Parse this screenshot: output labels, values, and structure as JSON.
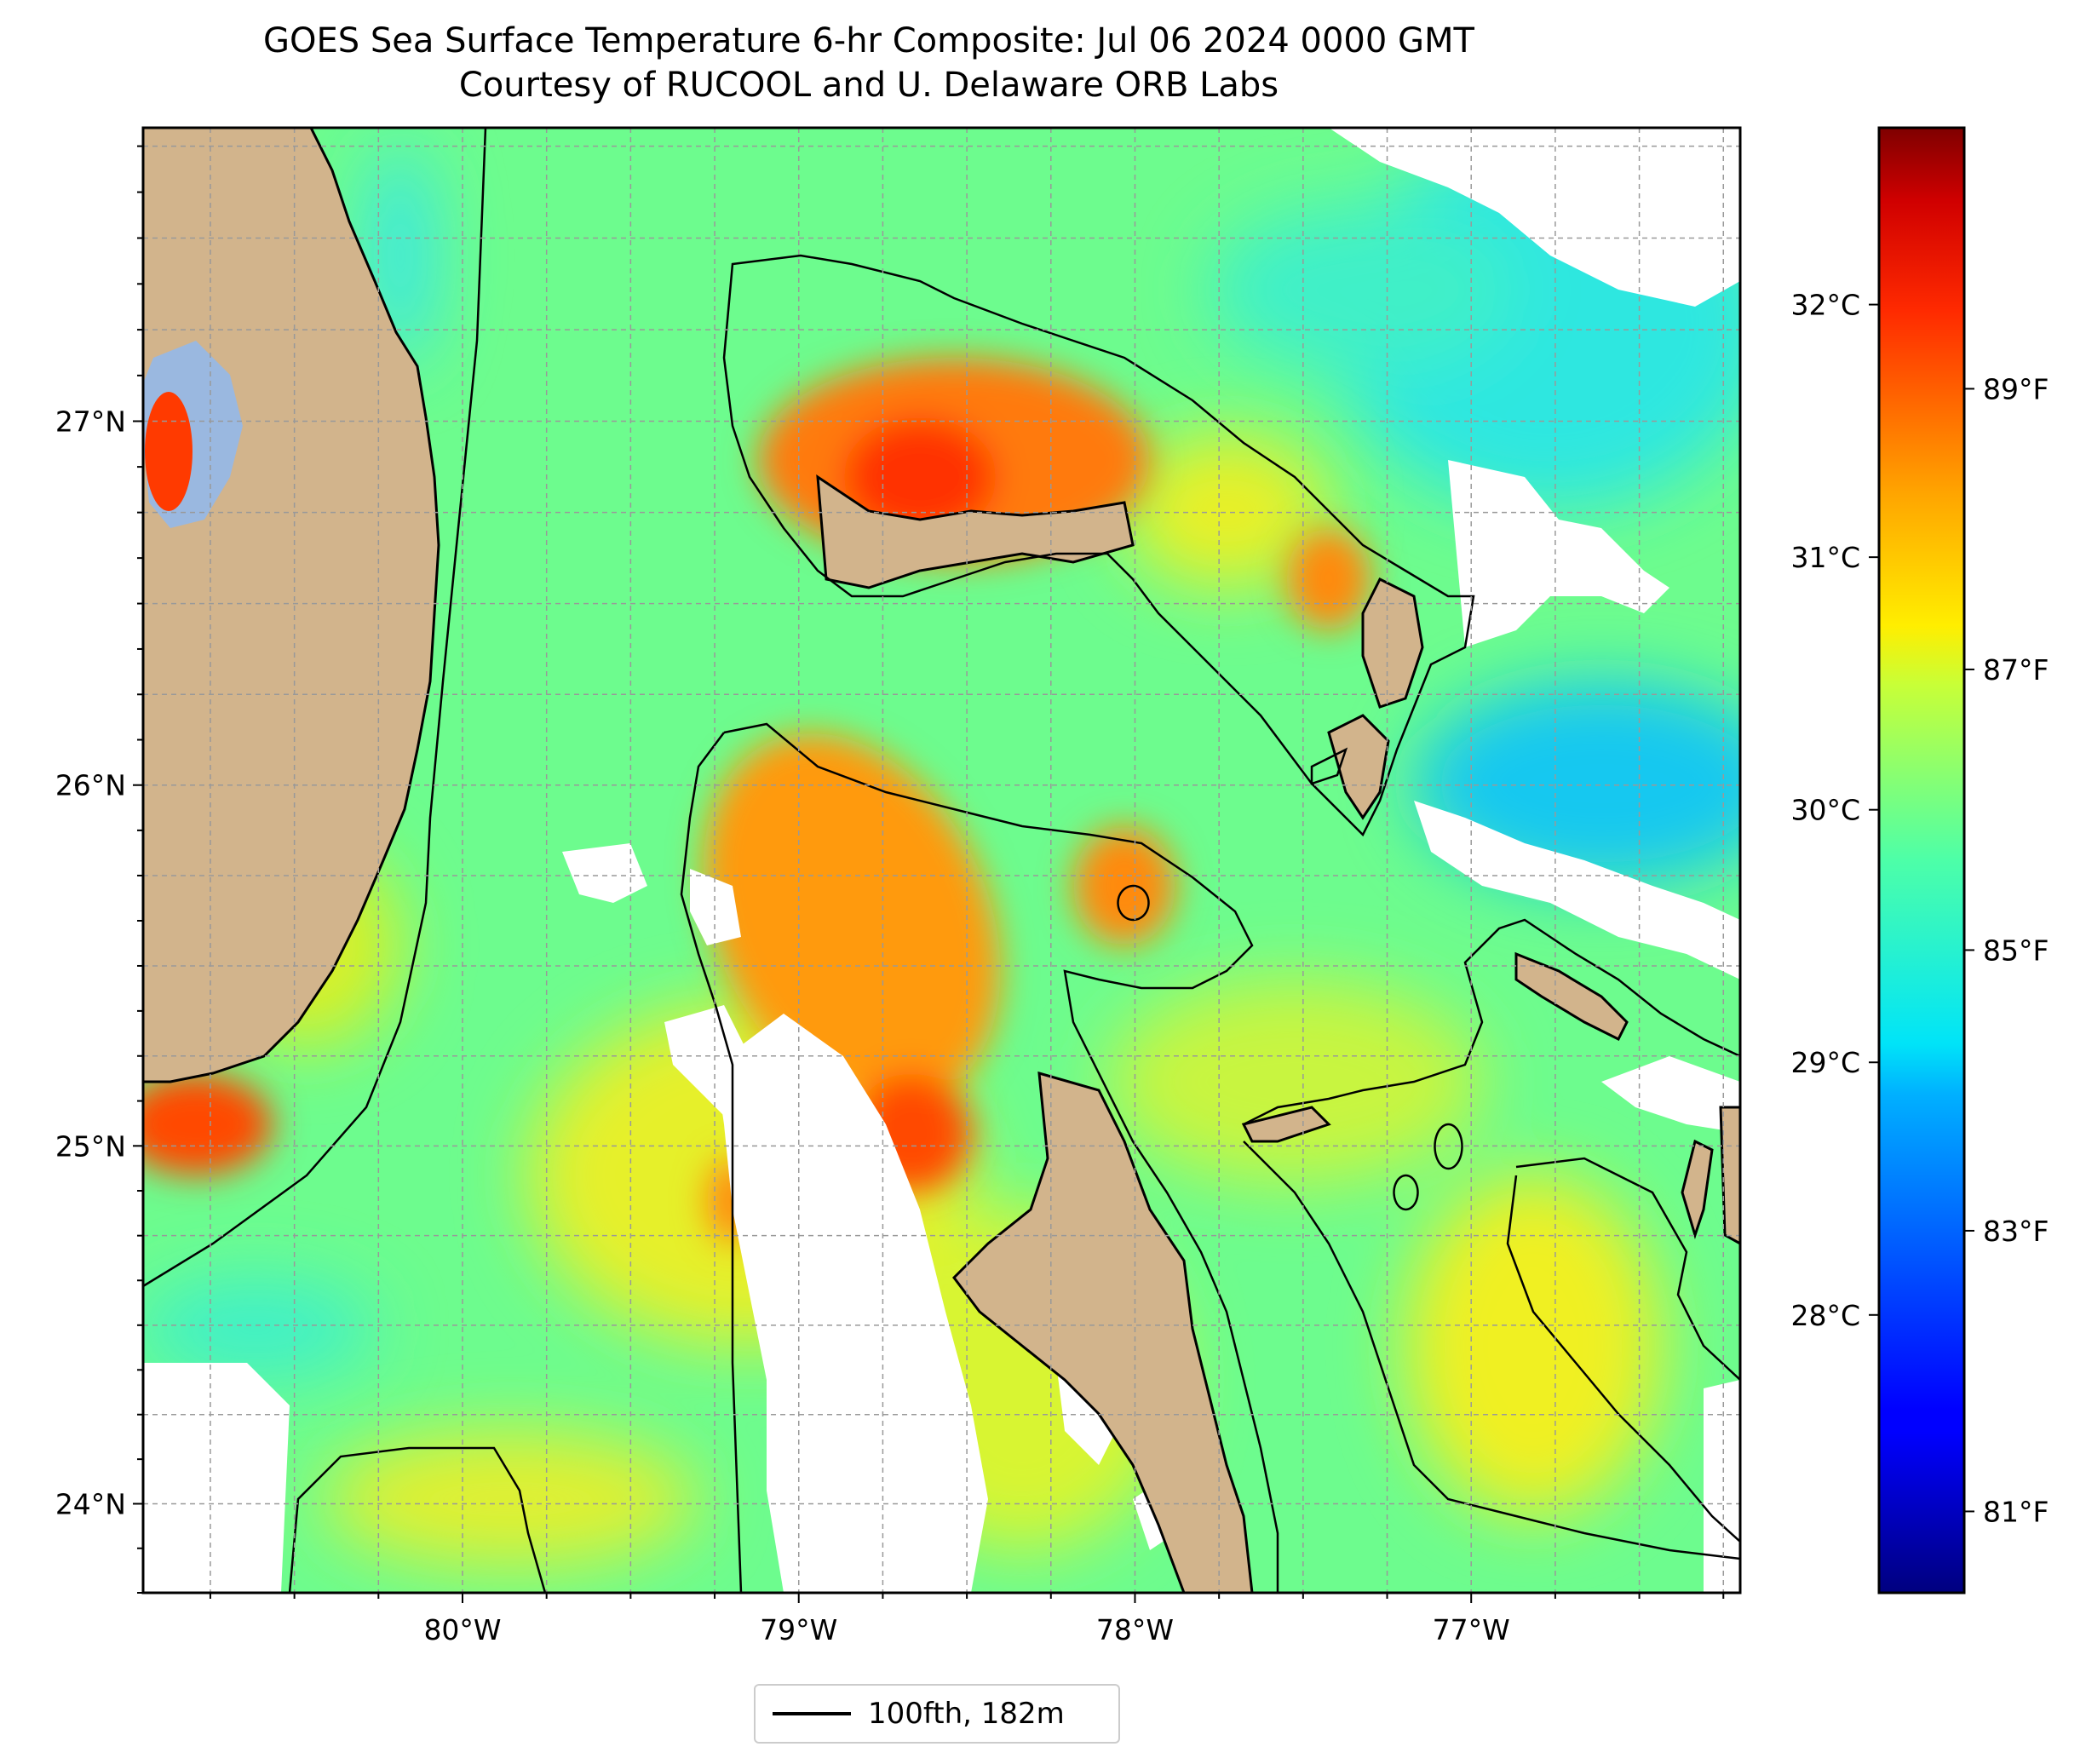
{
  "header": {
    "title": "GOES Sea Surface Temperature 6-hr Composite: Jul 06 2024 0000 GMT",
    "subtitle": "Courtesy of RUCOOL and U. Delaware ORB Labs"
  },
  "map": {
    "type": "sea-surface-temperature-map",
    "colormap": "jet",
    "land_color": "#d2b48c",
    "lake_color": "#9ab8e0",
    "no_data_color": "#ffffff",
    "contour_color": "#000000",
    "gridlines": "dashed gray",
    "x_ticks": [
      {
        "label": "80°W",
        "lon": -80
      },
      {
        "label": "79°W",
        "lon": -79
      },
      {
        "label": "78°W",
        "lon": -78
      },
      {
        "label": "77°W",
        "lon": -77
      }
    ],
    "y_ticks": [
      {
        "label": "27°N",
        "lat": 27
      },
      {
        "label": "26°N",
        "lat": 26
      },
      {
        "label": "25°N",
        "lat": 25
      },
      {
        "label": "24°N",
        "lat": 24
      }
    ],
    "extent": {
      "lon_min": -80.95,
      "lon_max": -76.2,
      "lat_min": 23.75,
      "lat_max": 27.8
    }
  },
  "colorbar": {
    "celsius_ticks": [
      {
        "label": "32°C",
        "value": 32
      },
      {
        "label": "31°C",
        "value": 31
      },
      {
        "label": "30°C",
        "value": 30
      },
      {
        "label": "29°C",
        "value": 29
      },
      {
        "label": "28°C",
        "value": 28
      }
    ],
    "fahrenheit_ticks": [
      {
        "label": "89°F",
        "value": 89
      },
      {
        "label": "87°F",
        "value": 87
      },
      {
        "label": "85°F",
        "value": 85
      },
      {
        "label": "83°F",
        "value": 83
      },
      {
        "label": "81°F",
        "value": 81
      }
    ],
    "range_celsius": [
      26.9,
      32.7
    ]
  },
  "legend": {
    "entry": "100fth, 182m"
  }
}
